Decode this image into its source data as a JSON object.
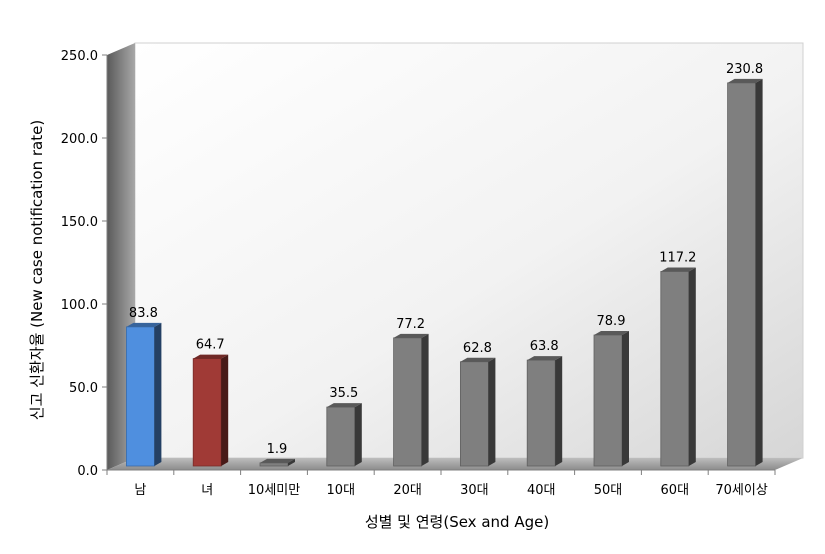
{
  "chart_data": {
    "type": "bar",
    "title": "",
    "xlabel": "성별 및 연령(Sex and Age)",
    "ylabel": "신고 신환자율 (New case notification rate)",
    "ylim": [
      0,
      250
    ],
    "yticks": [
      "0.0",
      "50.0",
      "100.0",
      "150.0",
      "200.0",
      "250.0"
    ],
    "categories": [
      "남",
      "녀",
      "10세미만",
      "10대",
      "20대",
      "30대",
      "40대",
      "50대",
      "60대",
      "70세이상"
    ],
    "values": [
      83.8,
      64.7,
      1.9,
      35.5,
      77.2,
      62.8,
      63.8,
      78.9,
      117.2,
      230.8
    ],
    "data_labels": [
      "83.8",
      "64.7",
      "1.9",
      "35.5",
      "77.2",
      "62.8",
      "63.8",
      "78.9",
      "117.2",
      "230.8"
    ],
    "bar_colors": [
      "#4f8fdf",
      "#a03a36",
      "#7f7f7f",
      "#7f7f7f",
      "#7f7f7f",
      "#7f7f7f",
      "#7f7f7f",
      "#7f7f7f",
      "#7f7f7f",
      "#7f7f7f"
    ],
    "legend": "none",
    "grid": false
  }
}
